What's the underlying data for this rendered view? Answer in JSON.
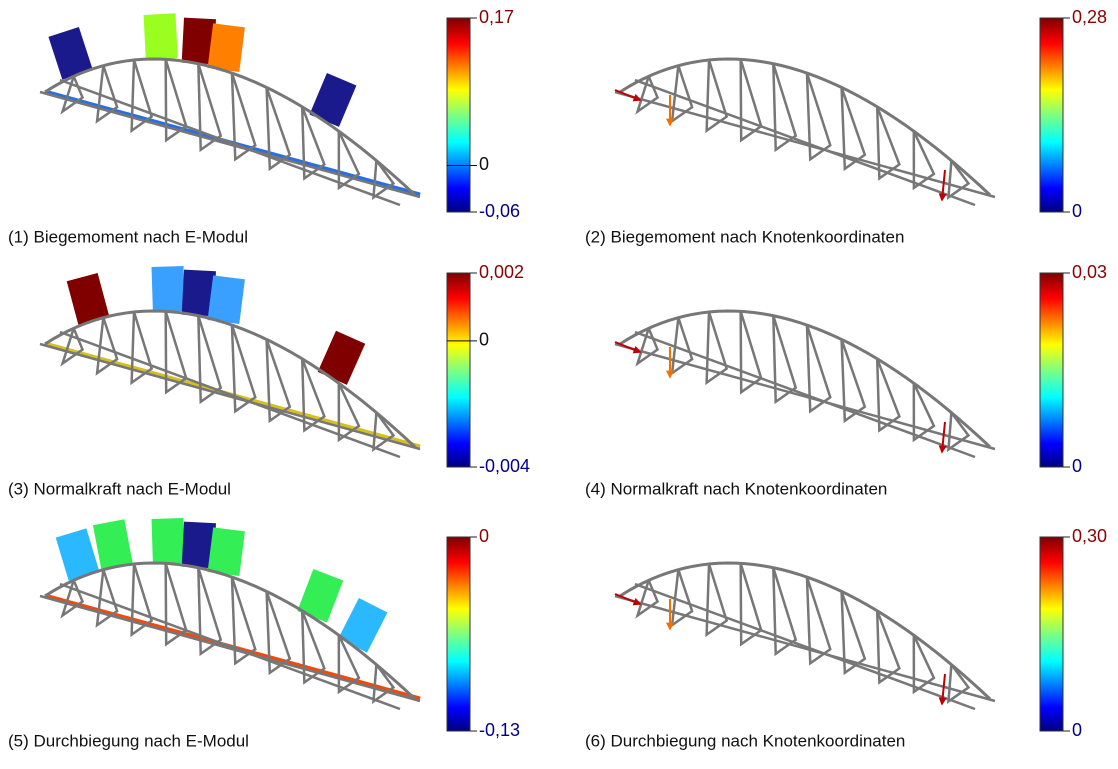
{
  "panels": [
    {
      "caption": "(1) Biegemoment nach E-Modul",
      "scale": {
        "max": "0,17",
        "zero": "0",
        "min": "-0,06"
      }
    },
    {
      "caption": "(2) Biegemoment nach Knotenkoordinaten",
      "scale": {
        "max": "0,28",
        "min": "0"
      }
    },
    {
      "caption": "(3) Normalkraft nach E-Modul",
      "scale": {
        "max": "0,002",
        "zero": "0",
        "min": "-0,004"
      }
    },
    {
      "caption": "(4) Normalkraft nach Knotenkoordinaten",
      "scale": {
        "max": "0,03",
        "min": "0"
      }
    },
    {
      "caption": "(5) Durchbiegung nach E-Modul",
      "scale": {
        "max": "0",
        "min": "-0,13"
      }
    },
    {
      "caption": "(6)  Durchbiegung nach Knotenkoordinaten",
      "scale": {
        "max": "0,30",
        "min": "0"
      }
    }
  ]
}
